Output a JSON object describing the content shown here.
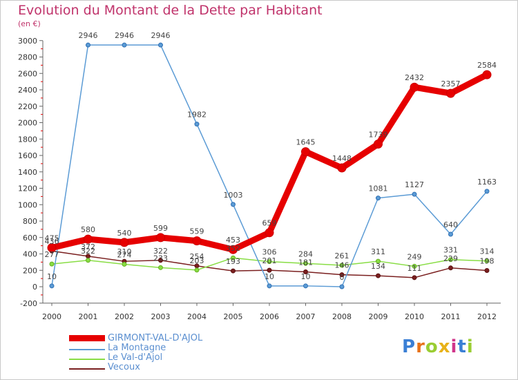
{
  "title": "Evolution du Montant de la Dette par Habitant",
  "subtitle": "(en €)",
  "logo": "Proxiti",
  "chart_data": {
    "type": "line",
    "categories": [
      "2000",
      "2001",
      "2002",
      "2003",
      "2004",
      "2005",
      "2006",
      "2007",
      "2008",
      "2009",
      "2010",
      "2011",
      "2012"
    ],
    "ylim": [
      -200,
      3000
    ],
    "yticks": [
      -200,
      0,
      200,
      400,
      600,
      800,
      1000,
      1200,
      1400,
      1600,
      1800,
      2000,
      2200,
      2400,
      2600,
      2800,
      3000
    ],
    "grid": false,
    "legend_position": "bottom-left",
    "series": [
      {
        "name": "GIRMONT-VAL-D'AJOL",
        "color": "#e60000",
        "values": [
          475,
          580,
          540,
          599,
          559,
          453,
          659,
          1645,
          1448,
          1739,
          2432,
          2357,
          2584
        ]
      },
      {
        "name": "La Montagne",
        "color": "#5b9bd5",
        "values": [
          10,
          2946,
          2946,
          2946,
          1982,
          1003,
          10,
          10,
          0,
          1081,
          1127,
          640,
          1163
        ]
      },
      {
        "name": "Le Val-d'Ajol",
        "color": "#88dd44",
        "values": [
          277,
          322,
          274,
          233,
          203,
          352,
          306,
          284,
          261,
          311,
          249,
          331,
          314
        ]
      },
      {
        "name": "Vecoux",
        "color": "#7a1f1f",
        "values": [
          436,
          372,
          310,
          322,
          254,
          193,
          201,
          181,
          146,
          134,
          111,
          229,
          198
        ]
      }
    ],
    "data_labels": [
      [
        "475",
        "580",
        "540",
        "599",
        "559",
        "453",
        "659",
        "1645",
        "1448",
        "1739",
        "2432",
        "2357",
        "2584"
      ],
      [
        "10",
        "2946",
        "2946",
        "2946",
        "1982",
        "1003",
        "10",
        "10",
        "0",
        "1081",
        "1127",
        "640",
        "1163"
      ],
      [
        "277",
        "322",
        "274",
        "233",
        "203",
        "352",
        "306",
        "284",
        "261",
        "311",
        "249",
        "331",
        "314"
      ],
      [
        "436",
        "372",
        "310",
        "322",
        "254",
        "193",
        "201",
        "181",
        "146",
        "134",
        "111",
        "229",
        "198"
      ]
    ]
  }
}
